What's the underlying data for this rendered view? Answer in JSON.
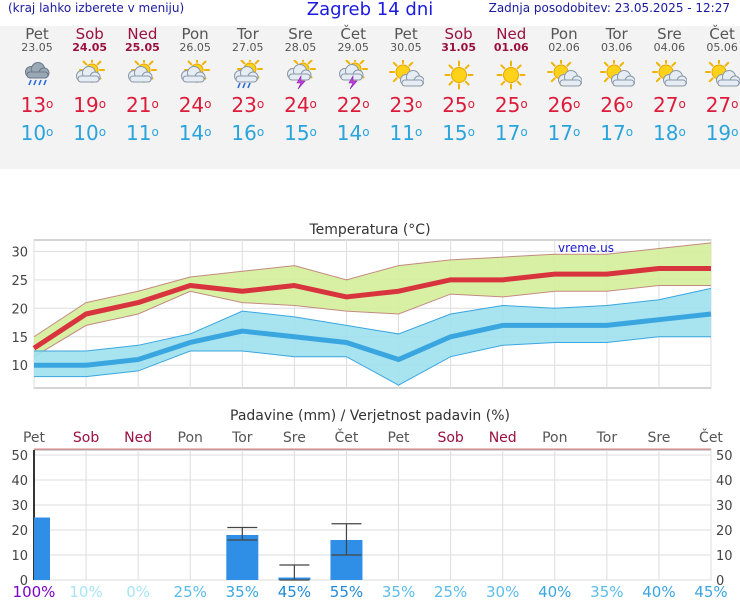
{
  "header": {
    "hint": "(kraj lahko izberete v meniju)",
    "title": "Zagreb 14 dni",
    "updated": "Zadnja posodobitev: 23.05.2025 - 12:27"
  },
  "days": [
    {
      "name": "Pet",
      "date": "23.05",
      "weekend": false,
      "icon": "cloud-rain-icon",
      "max": "13",
      "min": "10"
    },
    {
      "name": "Sob",
      "date": "24.05",
      "weekend": true,
      "icon": "sun-cloud-icon",
      "max": "19",
      "min": "10"
    },
    {
      "name": "Ned",
      "date": "25.05",
      "weekend": true,
      "icon": "sun-cloud-icon",
      "max": "21",
      "min": "11"
    },
    {
      "name": "Pon",
      "date": "26.05",
      "weekend": false,
      "icon": "sun-cloud-icon",
      "max": "24",
      "min": "14"
    },
    {
      "name": "Tor",
      "date": "27.05",
      "weekend": false,
      "icon": "sun-cloud-rain-icon",
      "max": "23",
      "min": "16"
    },
    {
      "name": "Sre",
      "date": "28.05",
      "weekend": false,
      "icon": "sun-cloud-storm-icon",
      "max": "24",
      "min": "15"
    },
    {
      "name": "Čet",
      "date": "29.05",
      "weekend": false,
      "icon": "sun-cloud-storm-icon",
      "max": "22",
      "min": "14"
    },
    {
      "name": "Pet",
      "date": "30.05",
      "weekend": false,
      "icon": "sun-small-cloud-icon",
      "max": "23",
      "min": "11"
    },
    {
      "name": "Sob",
      "date": "31.05",
      "weekend": true,
      "icon": "sun-icon",
      "max": "25",
      "min": "15"
    },
    {
      "name": "Ned",
      "date": "01.06",
      "weekend": true,
      "icon": "sun-icon",
      "max": "25",
      "min": "17"
    },
    {
      "name": "Pon",
      "date": "02.06",
      "weekend": false,
      "icon": "sun-small-cloud-icon",
      "max": "26",
      "min": "17"
    },
    {
      "name": "Tor",
      "date": "03.06",
      "weekend": false,
      "icon": "sun-small-cloud-icon",
      "max": "26",
      "min": "17"
    },
    {
      "name": "Sre",
      "date": "04.06",
      "weekend": false,
      "icon": "sun-small-cloud-icon",
      "max": "27",
      "min": "18"
    },
    {
      "name": "Čet",
      "date": "05.06",
      "weekend": false,
      "icon": "sun-small-cloud-icon",
      "max": "27",
      "min": "19"
    }
  ],
  "colors": {
    "max_line": "#d8343e",
    "min_line": "#3aa6e0",
    "max_band": "#d4ee9a",
    "min_band": "#9fe0ee",
    "bar": "#2f8fe6",
    "weekday": "#555555",
    "weekend": "#9a1040"
  },
  "chart_data": [
    {
      "type": "line",
      "title": "Temperatura (°C)",
      "watermark": "vreme.us",
      "ylim": [
        6,
        32
      ],
      "yticks": [
        10,
        15,
        20,
        25,
        30
      ],
      "grid": true,
      "series": [
        {
          "values": [
            13,
            19,
            21,
            24,
            23,
            24,
            22,
            23,
            25,
            25,
            26,
            26,
            27,
            27
          ]
        },
        {
          "values": [
            10,
            10,
            11,
            14,
            16,
            15,
            14,
            11,
            15,
            17,
            17,
            17,
            18,
            19
          ]
        }
      ],
      "bands": [
        {
          "upper": [
            15,
            21,
            23,
            25.5,
            26.5,
            27.5,
            25,
            27.5,
            28.5,
            29,
            29.5,
            29.5,
            30.5,
            31.5
          ],
          "lower": [
            11.5,
            17,
            19,
            23,
            21,
            20.5,
            19.5,
            19,
            22.5,
            22,
            23,
            23,
            24,
            24
          ]
        },
        {
          "upper": [
            12.5,
            12.5,
            13.5,
            15.5,
            19.5,
            18.5,
            17,
            15.5,
            19,
            20.5,
            20,
            20.5,
            21.5,
            23.5
          ],
          "lower": [
            8,
            8,
            9,
            12.5,
            12.5,
            11.5,
            11.5,
            6.5,
            11.5,
            13.5,
            14,
            14,
            15,
            15
          ]
        }
      ]
    },
    {
      "type": "bar",
      "title": "Padavine (mm) / Verjetnost padavin (%)",
      "ylim": [
        0,
        52
      ],
      "yticks": [
        0,
        10,
        20,
        30,
        40,
        50
      ],
      "categories": [
        "Pet",
        "Sob",
        "Ned",
        "Pon",
        "Tor",
        "Sre",
        "Čet",
        "Pet",
        "Sob",
        "Ned",
        "Pon",
        "Tor",
        "Sre",
        "Čet"
      ],
      "weekend": [
        false,
        true,
        true,
        false,
        false,
        false,
        false,
        false,
        true,
        true,
        false,
        false,
        false,
        false
      ],
      "values": [
        25,
        0,
        0,
        0,
        18,
        1,
        16,
        0,
        0,
        0,
        0,
        0,
        0,
        0
      ],
      "error_low": [
        null,
        null,
        null,
        null,
        16,
        0,
        10,
        null,
        null,
        null,
        null,
        null,
        null,
        null
      ],
      "error_high": [
        null,
        null,
        null,
        null,
        21,
        6,
        22.5,
        null,
        null,
        null,
        null,
        null,
        null,
        null
      ],
      "probability": [
        "100%",
        "10%",
        "0%",
        "25%",
        "35%",
        "45%",
        "55%",
        "35%",
        "25%",
        "30%",
        "40%",
        "35%",
        "40%",
        "45%"
      ],
      "probability_colors": [
        "#7a00c8",
        "#a8e4f8",
        "#a8e4f8",
        "#5abcec",
        "#3aa6e0",
        "#1f8ad8",
        "#1f8ad8",
        "#5abcec",
        "#5abcec",
        "#5abcec",
        "#3aa6e0",
        "#5abcec",
        "#3aa6e0",
        "#3aa6e0"
      ]
    }
  ]
}
